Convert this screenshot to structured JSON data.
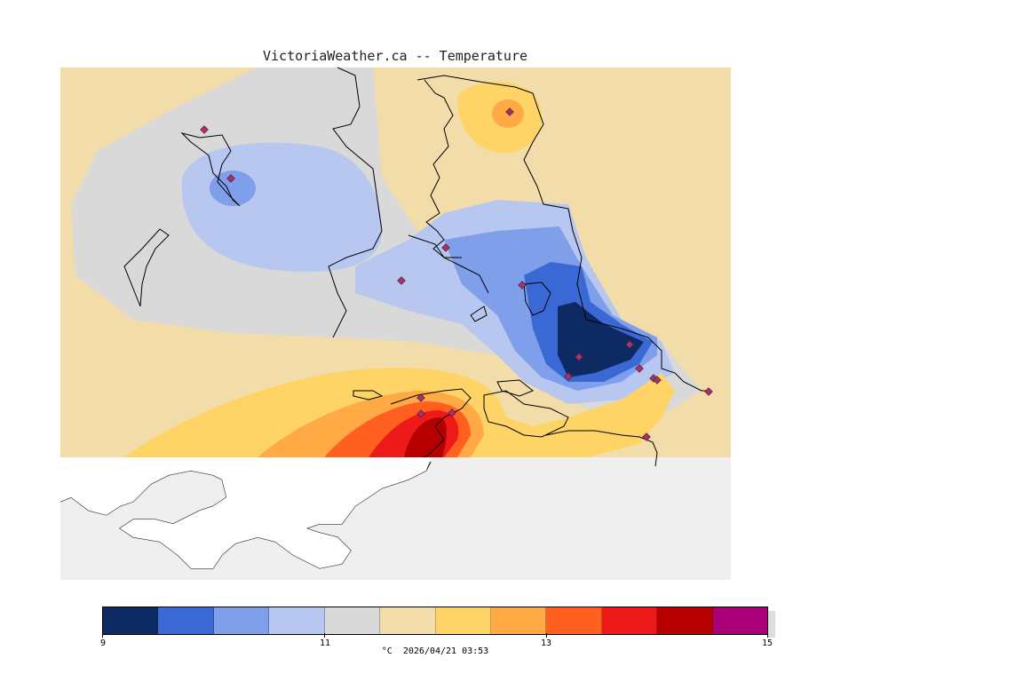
{
  "header": {
    "title": "VictoriaWeather.ca -- Temperature"
  },
  "legend": {
    "colors": [
      "#0d2a63",
      "#3a68d4",
      "#7f9fea",
      "#b8c7f0",
      "#d9d9d9",
      "#f2ddaa",
      "#ffd466",
      "#ffaa44",
      "#ff6020",
      "#ee1a1a",
      "#b60000",
      "#aa0077"
    ],
    "tick_labels": [
      "9",
      "11",
      "13",
      "15"
    ],
    "caption": "°C  2026/04/21 03:53"
  },
  "map": {
    "background_color": "#efefef",
    "land_color": "#ffffff",
    "coast_color": "#000000",
    "station_marker_color": "#aa3366"
  }
}
